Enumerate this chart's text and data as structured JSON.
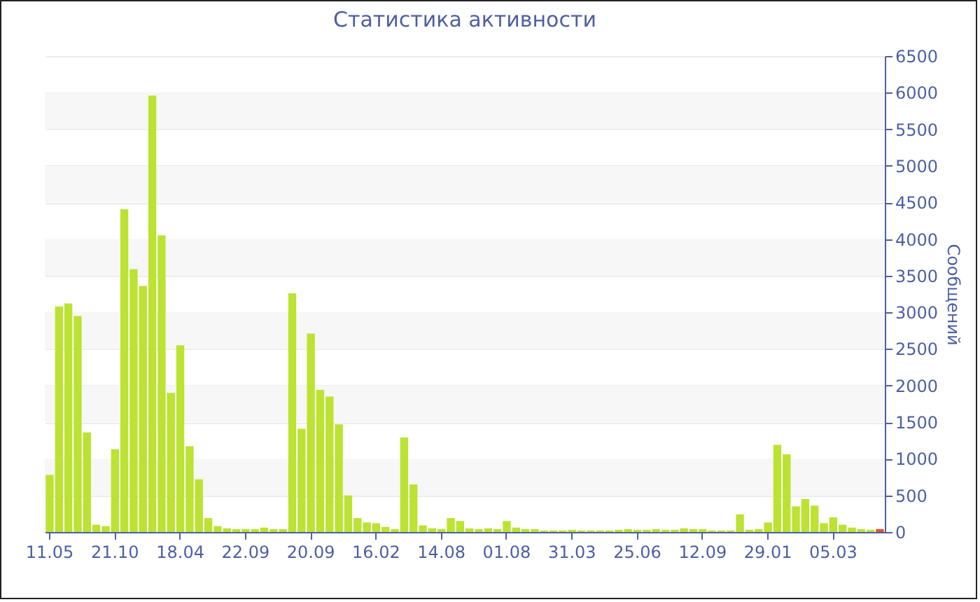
{
  "chart_data": {
    "type": "bar",
    "title": "Статистика активности",
    "ylabel": "Сообщений",
    "categories": [
      "11.05",
      null,
      null,
      null,
      null,
      null,
      null,
      "21.10",
      null,
      null,
      null,
      null,
      null,
      null,
      "18.04",
      null,
      null,
      null,
      null,
      null,
      null,
      "22.09",
      null,
      null,
      null,
      null,
      null,
      null,
      "20.09",
      null,
      null,
      null,
      null,
      null,
      null,
      "16.02",
      null,
      null,
      null,
      null,
      null,
      null,
      "14.08",
      null,
      null,
      null,
      null,
      null,
      null,
      "01.08",
      null,
      null,
      null,
      null,
      null,
      null,
      "31.03",
      null,
      null,
      null,
      null,
      null,
      null,
      "25.06",
      null,
      null,
      null,
      null,
      null,
      null,
      "12.09",
      null,
      null,
      null,
      null,
      null,
      null,
      "29.01",
      null,
      null,
      null,
      null,
      null,
      null,
      "05.03",
      null,
      null,
      null,
      null,
      null
    ],
    "values": [
      780,
      3080,
      3120,
      2950,
      1360,
      100,
      80,
      1130,
      4410,
      3590,
      3360,
      5960,
      4050,
      1900,
      2550,
      1170,
      720,
      190,
      80,
      50,
      40,
      40,
      40,
      60,
      40,
      40,
      3260,
      1410,
      2710,
      1940,
      1850,
      1470,
      500,
      190,
      130,
      120,
      70,
      40,
      1290,
      650,
      90,
      50,
      40,
      190,
      150,
      50,
      40,
      50,
      40,
      150,
      60,
      40,
      40,
      20,
      20,
      20,
      30,
      20,
      20,
      20,
      20,
      30,
      40,
      30,
      30,
      40,
      30,
      30,
      50,
      40,
      40,
      20,
      20,
      20,
      240,
      30,
      40,
      130,
      1190,
      1060,
      350,
      450,
      360,
      120,
      200,
      100,
      60,
      40,
      30,
      40
    ],
    "colors": [
      "#bce232",
      "#bce232",
      "#bce232",
      "#bce232",
      "#bce232",
      "#bce232",
      "#bce232",
      "#bce232",
      "#bce232",
      "#bce232",
      "#bce232",
      "#bce232",
      "#bce232",
      "#bce232",
      "#bce232",
      "#bce232",
      "#bce232",
      "#bce232",
      "#bce232",
      "#bce232",
      "#bce232",
      "#bce232",
      "#bce232",
      "#bce232",
      "#bce232",
      "#bce232",
      "#bce232",
      "#bce232",
      "#bce232",
      "#bce232",
      "#bce232",
      "#bce232",
      "#bce232",
      "#bce232",
      "#bce232",
      "#bce232",
      "#bce232",
      "#bce232",
      "#bce232",
      "#bce232",
      "#bce232",
      "#bce232",
      "#bce232",
      "#bce232",
      "#bce232",
      "#bce232",
      "#bce232",
      "#bce232",
      "#bce232",
      "#bce232",
      "#bce232",
      "#bce232",
      "#bce232",
      "#bce232",
      "#bce232",
      "#bce232",
      "#bce232",
      "#bce232",
      "#bce232",
      "#bce232",
      "#bce232",
      "#bce232",
      "#bce232",
      "#bce232",
      "#bce232",
      "#bce232",
      "#bce232",
      "#bce232",
      "#bce232",
      "#bce232",
      "#bce232",
      "#bce232",
      "#bce232",
      "#bce232",
      "#bce232",
      "#bce232",
      "#bce232",
      "#bce232",
      "#bce232",
      "#bce232",
      "#bce232",
      "#bce232",
      "#bce232",
      "#bce232",
      "#bce232",
      "#bce232",
      "#bce232",
      "#bce232",
      "#bce232",
      "#e0552e"
    ],
    "ylim": [
      0,
      6500
    ],
    "yticks": [
      0,
      500,
      1000,
      1500,
      2000,
      2500,
      3000,
      3500,
      4000,
      4500,
      5000,
      5500,
      6000,
      6500
    ],
    "grid": true
  }
}
